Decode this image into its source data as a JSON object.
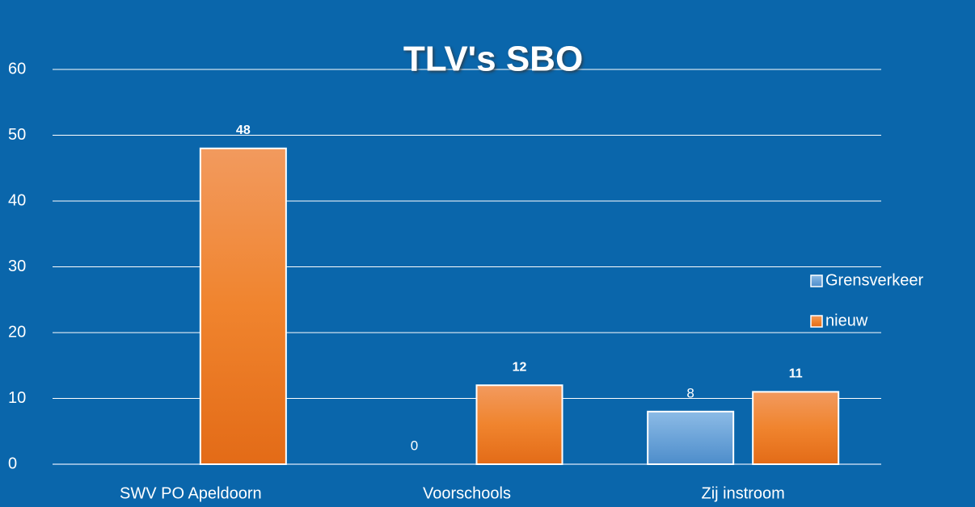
{
  "chart_data": {
    "type": "bar",
    "title": "TLV's SBO",
    "categories": [
      "SWV PO Apeldoorn",
      "Voorschools",
      "Zij instroom"
    ],
    "series": [
      {
        "name": "Grensverkeer",
        "color": "#5b9bd5",
        "values": [
          null,
          0,
          8
        ]
      },
      {
        "name": "nieuw",
        "color": "#ed7d31",
        "values": [
          48,
          12,
          11
        ]
      }
    ],
    "ylim": [
      0,
      60
    ],
    "yticks": [
      0,
      10,
      20,
      30,
      40,
      50,
      60
    ],
    "grid": true,
    "legend": "right"
  }
}
